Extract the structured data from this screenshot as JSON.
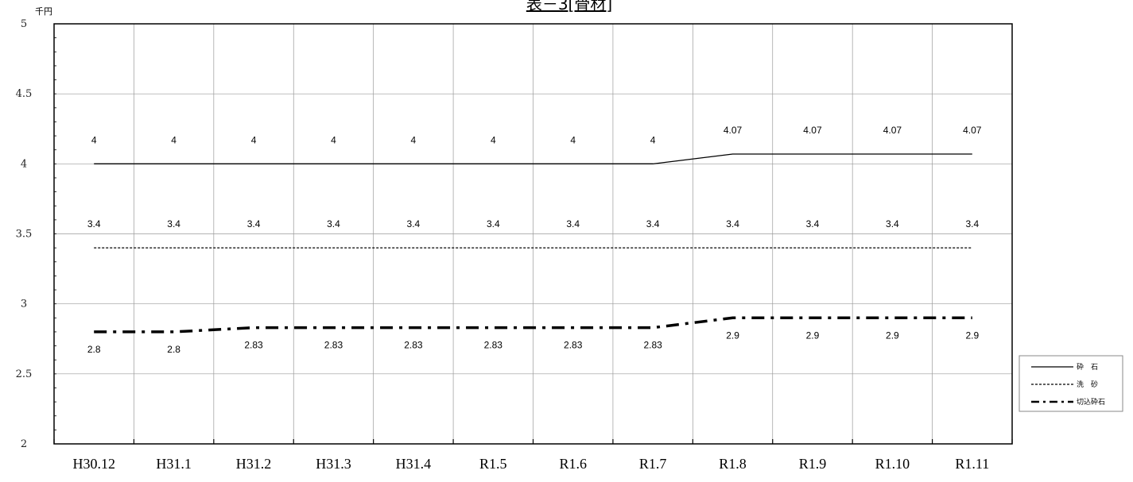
{
  "chart_data": {
    "type": "line",
    "title": "表－3[骨材]",
    "unit_label": "千円",
    "categories": [
      "H30.12",
      "H31.1",
      "H31.2",
      "H31.3",
      "H31.4",
      "R1.5",
      "R1.6",
      "R1.7",
      "R1.8",
      "R1.9",
      "R1.10",
      "R1.11"
    ],
    "ylim": [
      2,
      5
    ],
    "yticks": [
      {
        "value": 2,
        "label": "2"
      },
      {
        "value": 2.5,
        "label": "2.5"
      },
      {
        "value": 3,
        "label": "3"
      },
      {
        "value": 3.5,
        "label": "3.5"
      },
      {
        "value": 4,
        "label": "4"
      },
      {
        "value": 4.5,
        "label": "4.5"
      },
      {
        "value": 5,
        "label": "5"
      }
    ],
    "grid": true,
    "legend_position": "right",
    "series": [
      {
        "name": "砕　石",
        "style": "solid",
        "color": "#000000",
        "label_position": "above",
        "values": [
          4,
          4,
          4,
          4,
          4,
          4,
          4,
          4,
          4.07,
          4.07,
          4.07,
          4.07
        ],
        "labels": [
          "4",
          "4",
          "4",
          "4",
          "4",
          "4",
          "4",
          "4",
          "4.07",
          "4.07",
          "4.07",
          "4.07"
        ]
      },
      {
        "name": "洗　砂",
        "style": "dashed",
        "color": "#000000",
        "label_position": "above",
        "values": [
          3.4,
          3.4,
          3.4,
          3.4,
          3.4,
          3.4,
          3.4,
          3.4,
          3.4,
          3.4,
          3.4,
          3.4
        ],
        "labels": [
          "3.4",
          "3.4",
          "3.4",
          "3.4",
          "3.4",
          "3.4",
          "3.4",
          "3.4",
          "3.4",
          "3.4",
          "3.4",
          "3.4"
        ]
      },
      {
        "name": "切込砕石",
        "style": "dashdot",
        "color": "#000000",
        "label_position": "below",
        "values": [
          2.8,
          2.8,
          2.83,
          2.83,
          2.83,
          2.83,
          2.83,
          2.83,
          2.9,
          2.9,
          2.9,
          2.9
        ],
        "labels": [
          "2.8",
          "2.8",
          "2.83",
          "2.83",
          "2.83",
          "2.83",
          "2.83",
          "2.83",
          "2.9",
          "2.9",
          "2.9",
          "2.9"
        ]
      }
    ]
  }
}
